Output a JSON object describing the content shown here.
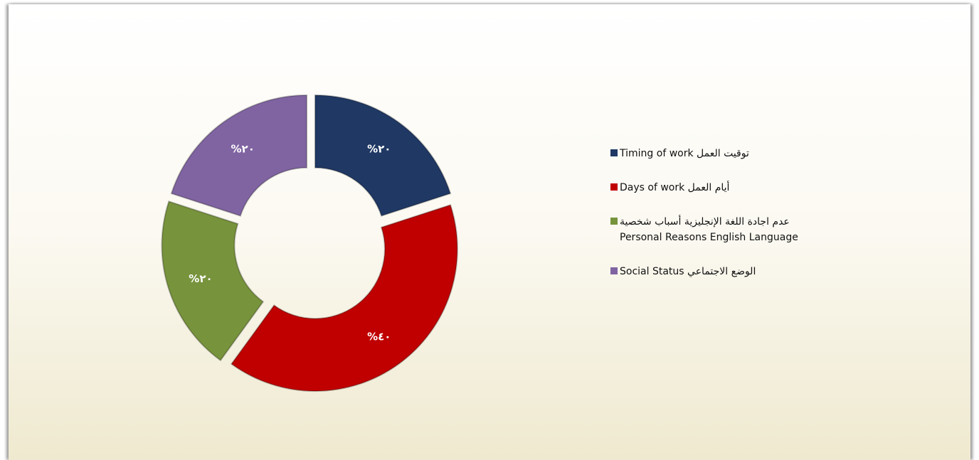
{
  "chart_data": {
    "type": "donut",
    "categories": [
      "توقيت العمل Timing of work",
      "أيام العمل Days of work",
      "عدم اجادة اللغة الإنجليزية      أسباب شخصية\nPersonal Reasons   English Language",
      "الوضع الاجتماعي Social Status"
    ],
    "values": [
      20,
      40,
      20,
      20
    ],
    "value_labels": [
      "%٢٠",
      "%٤٠",
      "%٢٠",
      "%٢٠"
    ],
    "colors": [
      "#1f3864",
      "#c00000",
      "#77933c",
      "#8064a2"
    ],
    "legend": "right"
  }
}
